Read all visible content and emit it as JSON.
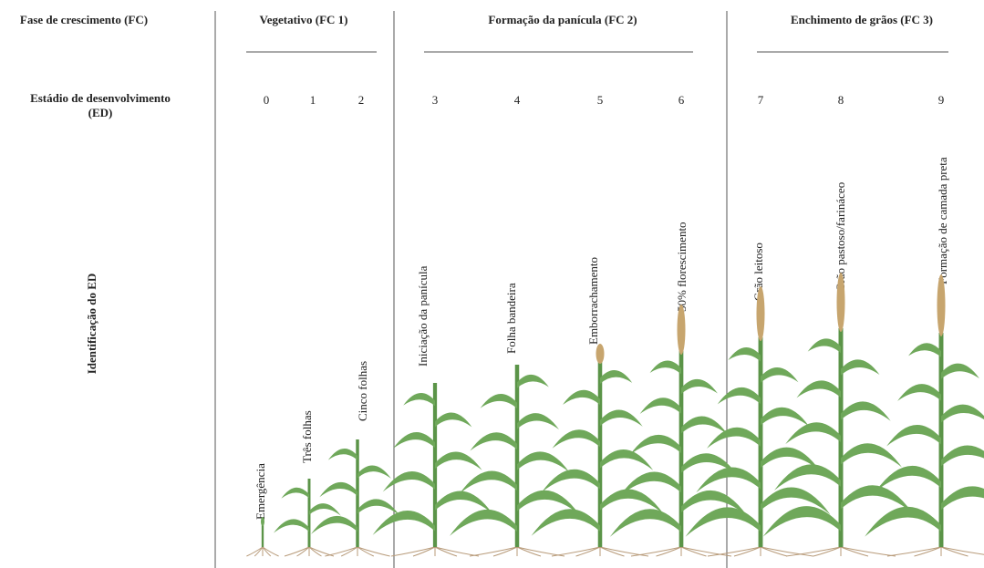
{
  "row_labels": {
    "phase": "Fase de crescimento (FC)",
    "stage": "Estádio de desenvolvimento (ED)",
    "identification": "Identificação do ED"
  },
  "phases": [
    {
      "label": "Vegetativo (FC 1)"
    },
    {
      "label": "Formação da panícula (FC 2)"
    },
    {
      "label": "Enchimento de grãos (FC 3)"
    }
  ],
  "stages": [
    {
      "number": "0",
      "name": "Emergência"
    },
    {
      "number": "1",
      "name": "Três folhas"
    },
    {
      "number": "2",
      "name": "Cinco folhas"
    },
    {
      "number": "3",
      "name": "Iniciação da panícula"
    },
    {
      "number": "4",
      "name": "Folha bandeira"
    },
    {
      "number": "5",
      "name": "Emborrachamento"
    },
    {
      "number": "6",
      "name": "50% florescimento"
    },
    {
      "number": "7",
      "name": "Grão leitoso"
    },
    {
      "number": "8",
      "name": "Grão pastoso/farináceo"
    },
    {
      "number": "9",
      "name": "Formação de camada preta"
    }
  ]
}
